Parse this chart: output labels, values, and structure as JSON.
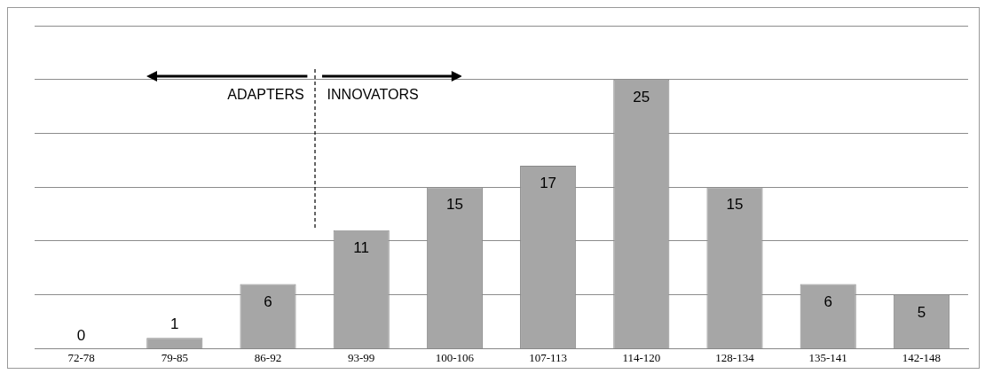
{
  "chart_data": {
    "type": "bar",
    "categories": [
      "72-78",
      "79-85",
      "86-92",
      "93-99",
      "100-106",
      "107-113",
      "114-120",
      "128-134",
      "135-141",
      "142-148"
    ],
    "values": [
      0,
      1,
      6,
      11,
      15,
      17,
      25,
      15,
      6,
      5
    ],
    "color": "#a6a6a6",
    "ylim": [
      0,
      30
    ],
    "grid": "y",
    "tick_labels": "x",
    "data_labels": true,
    "legend": false,
    "annotations": [
      "ADAPTERS",
      "INNOVATORS"
    ]
  }
}
